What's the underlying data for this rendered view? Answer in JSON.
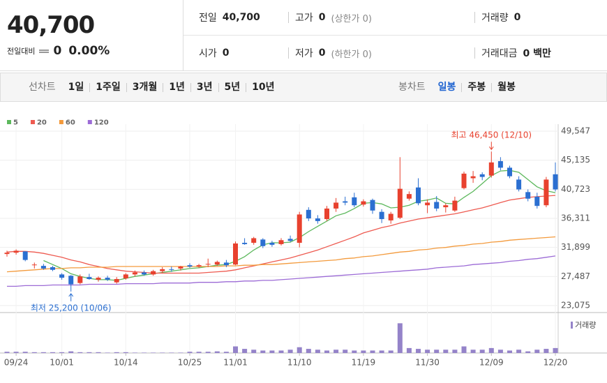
{
  "header": {
    "price": "40,700",
    "change_label": "전일대비",
    "change": "0",
    "change_rate": "0.00%"
  },
  "info": [
    [
      {
        "label": "전일",
        "value": "40,700"
      },
      {
        "label": "고가",
        "value": "0",
        "note": "(상한가 0)"
      },
      {
        "label": "거래량",
        "value": "0"
      }
    ],
    [
      {
        "label": "시가",
        "value": "0"
      },
      {
        "label": "저가",
        "value": "0",
        "note": "(하한가 0)"
      },
      {
        "label": "거래대금",
        "value": "0 백만"
      }
    ]
  ],
  "tabs": {
    "line_label": "선차트",
    "line_periods": [
      "1일",
      "1주일",
      "3개월",
      "1년",
      "3년",
      "5년",
      "10년"
    ],
    "candle_label": "봉차트",
    "candle_periods": [
      "일봉",
      "주봉",
      "월봉"
    ],
    "active": "일봉"
  },
  "chart_data": {
    "type": "candlestick",
    "categories": [
      null,
      "09/24",
      null,
      null,
      null,
      null,
      "10/01",
      null,
      null,
      null,
      null,
      null,
      null,
      "10/14",
      null,
      null,
      null,
      null,
      null,
      null,
      "10/25",
      null,
      null,
      null,
      null,
      "11/01",
      null,
      null,
      null,
      null,
      null,
      null,
      "11/10",
      null,
      null,
      null,
      null,
      null,
      null,
      "11/19",
      null,
      null,
      null,
      null,
      null,
      null,
      "11/30",
      null,
      null,
      null,
      null,
      null,
      null,
      "12/09",
      null,
      null,
      null,
      null,
      null,
      null,
      "12/20"
    ],
    "open": [
      30900,
      31100,
      31300,
      29200,
      29100,
      28900,
      27800,
      27600,
      26500,
      27400,
      27000,
      27300,
      26600,
      27200,
      27800,
      28100,
      27800,
      28300,
      28600,
      28700,
      29200,
      29000,
      29300,
      29300,
      29600,
      29300,
      32600,
      32600,
      33100,
      32600,
      32400,
      33200,
      32600,
      37600,
      36300,
      36200,
      37800,
      38900,
      39500,
      38400,
      39100,
      37300,
      36000,
      36400,
      39300,
      41000,
      38300,
      38800,
      38000,
      37500,
      40900,
      42400,
      43000,
      42800,
      45000,
      44000,
      42200,
      40300,
      39600,
      38300,
      43000
    ],
    "high": [
      31400,
      31600,
      31300,
      29600,
      29400,
      29100,
      28000,
      27700,
      27800,
      27900,
      27500,
      27600,
      27400,
      28000,
      28400,
      28400,
      28500,
      28900,
      29000,
      29100,
      29500,
      29400,
      30200,
      29900,
      30000,
      32800,
      33300,
      33500,
      33300,
      32900,
      33300,
      33700,
      37300,
      38000,
      36800,
      38200,
      39400,
      39600,
      40200,
      39200,
      39300,
      37700,
      37300,
      45600,
      40400,
      42400,
      39200,
      39700,
      38600,
      39600,
      43400,
      43500,
      43300,
      46450,
      45600,
      44300,
      42700,
      40700,
      40200,
      42600,
      44800
    ],
    "low": [
      30500,
      30800,
      29800,
      28700,
      28500,
      28300,
      27000,
      25200,
      26300,
      27000,
      26700,
      26800,
      26400,
      27000,
      27500,
      27600,
      27600,
      28000,
      28200,
      28400,
      28800,
      28800,
      28900,
      29100,
      28900,
      29200,
      32300,
      32300,
      31800,
      32000,
      32200,
      32700,
      31900,
      35900,
      35500,
      35900,
      37300,
      38300,
      38000,
      38100,
      37000,
      35600,
      35500,
      36200,
      39000,
      38300,
      37100,
      37400,
      37200,
      37300,
      40700,
      41700,
      42100,
      42500,
      43600,
      42400,
      40400,
      38900,
      37800,
      38000,
      40400
    ],
    "close": [
      31100,
      31400,
      30000,
      29300,
      28700,
      28500,
      27300,
      26300,
      27500,
      27100,
      27300,
      27000,
      27100,
      27800,
      28100,
      27800,
      28300,
      28600,
      28500,
      29000,
      29000,
      29200,
      29400,
      29700,
      29200,
      32500,
      32400,
      33300,
      32100,
      32300,
      33000,
      32900,
      36900,
      36300,
      35900,
      37800,
      38700,
      38700,
      38300,
      38900,
      37500,
      36200,
      37000,
      40800,
      40000,
      38600,
      38700,
      37800,
      38300,
      39000,
      43100,
      42700,
      42600,
      44800,
      44000,
      42700,
      40700,
      39300,
      38200,
      42200,
      40700
    ],
    "up_color": "#e8412e",
    "down_color": "#2b6fd1",
    "series": [
      {
        "name": "5",
        "color": "#5cb85c",
        "values": [
          null,
          null,
          null,
          null,
          29900,
          29300,
          28700,
          27900,
          27500,
          27200,
          27000,
          27000,
          26900,
          27200,
          27500,
          27700,
          27900,
          28100,
          28300,
          28500,
          28700,
          28800,
          29000,
          29200,
          29300,
          29800,
          30500,
          31500,
          32300,
          32600,
          32600,
          32700,
          33400,
          34300,
          35100,
          35900,
          36700,
          37100,
          37800,
          38600,
          38700,
          38500,
          37900,
          38000,
          38300,
          38900,
          39100,
          39400,
          38600,
          38500,
          39500,
          40400,
          41600,
          42800,
          43500,
          43600,
          43300,
          42200,
          41100,
          40500,
          40200
        ]
      },
      {
        "name": "20",
        "color": "#ee5a50",
        "values": [
          31200,
          31300,
          31300,
          31200,
          31000,
          30700,
          30400,
          30000,
          29700,
          29300,
          29000,
          28700,
          28500,
          28300,
          28200,
          28100,
          28000,
          28000,
          28000,
          28000,
          28000,
          28000,
          28100,
          28200,
          28300,
          28500,
          28800,
          29100,
          29400,
          29700,
          30000,
          30300,
          30700,
          31100,
          31500,
          32000,
          32500,
          33000,
          33500,
          34100,
          34500,
          34900,
          35200,
          35600,
          35900,
          36200,
          36400,
          36600,
          36800,
          37000,
          37300,
          37600,
          37900,
          38300,
          38700,
          39100,
          39300,
          39500,
          39600,
          39700,
          39800
        ]
      },
      {
        "name": "60",
        "color": "#f39a3c",
        "values": [
          28200,
          28300,
          28400,
          28500,
          28600,
          28700,
          28700,
          28800,
          28800,
          28900,
          28900,
          28900,
          29000,
          29000,
          29000,
          29000,
          29000,
          29000,
          29000,
          29000,
          29000,
          29000,
          29000,
          29000,
          29100,
          29100,
          29200,
          29200,
          29300,
          29300,
          29400,
          29500,
          29600,
          29700,
          29800,
          29900,
          30000,
          30200,
          30300,
          30500,
          30600,
          30800,
          31000,
          31200,
          31300,
          31500,
          31600,
          31800,
          31900,
          32100,
          32200,
          32400,
          32500,
          32700,
          32800,
          33000,
          33100,
          33200,
          33300,
          33400,
          33500
        ]
      },
      {
        "name": "120",
        "color": "#9c6bd6",
        "values": [
          26000,
          26000,
          26100,
          26100,
          26100,
          26200,
          26200,
          26200,
          26200,
          26300,
          26300,
          26300,
          26300,
          26400,
          26400,
          26400,
          26400,
          26500,
          26500,
          26500,
          26500,
          26600,
          26600,
          26600,
          26700,
          26700,
          26800,
          26800,
          26900,
          26900,
          27000,
          27100,
          27200,
          27300,
          27400,
          27500,
          27600,
          27700,
          27800,
          27900,
          28000,
          28100,
          28200,
          28300,
          28400,
          28500,
          28600,
          28800,
          28900,
          29000,
          29100,
          29300,
          29400,
          29500,
          29600,
          29800,
          29900,
          30100,
          30200,
          30400,
          30600
        ]
      }
    ],
    "volume": {
      "name": "거래량",
      "color": "#9483c9",
      "ylim": [
        0,
        38
      ],
      "values": [
        1.5,
        1.5,
        1.5,
        1,
        1,
        1,
        1,
        2,
        1,
        1,
        1,
        0.5,
        1,
        1,
        0.5,
        0.5,
        0.5,
        0.5,
        0.5,
        0.5,
        1.5,
        1.5,
        1.5,
        2,
        1.5,
        8,
        5,
        4,
        3,
        3,
        3,
        4,
        7,
        5,
        4,
        3,
        4,
        4,
        3,
        3,
        3,
        3,
        3,
        36,
        6,
        5,
        4,
        4,
        4,
        4,
        8,
        4,
        4,
        6,
        4,
        3,
        4,
        2,
        4,
        5,
        6
      ]
    },
    "ylim": [
      23075,
      49547
    ],
    "yticks": [
      {
        "value": 23075,
        "label": "23,075"
      },
      {
        "value": 27487,
        "label": "27,487"
      },
      {
        "value": 31899,
        "label": "31,899"
      },
      {
        "value": 36311,
        "label": "36,311"
      },
      {
        "value": 40723,
        "label": "40,723"
      },
      {
        "value": 45135,
        "label": "45,135"
      },
      {
        "value": 49547,
        "label": "49,547"
      }
    ],
    "grid": true,
    "max_label": "최고 46,450 (12/10)",
    "min_label": "최저 25,200 (10/06)"
  }
}
